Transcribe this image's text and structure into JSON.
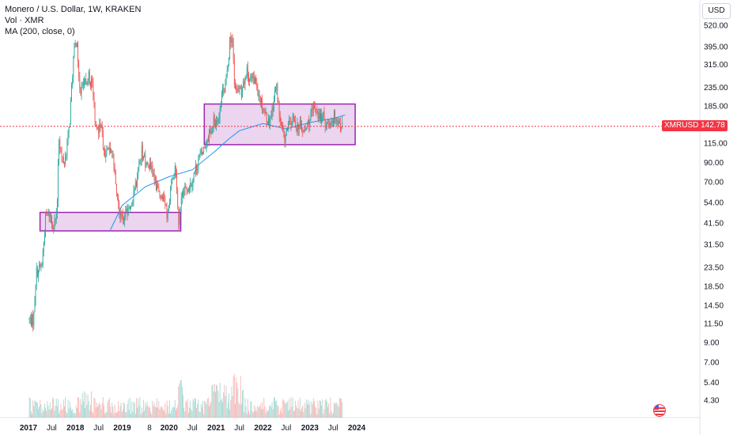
{
  "header": {
    "symbol_line": "Monero / U.S. Dollar, 1W, KRAKEN",
    "volume_line": "Vol · XMR",
    "ma_line": "MA (200, close, 0)"
  },
  "currency_button": "USD",
  "colors": {
    "up": "#26a69a",
    "down": "#ef5350",
    "ma": "#2196f3",
    "box_fill": "#e1bee7",
    "box_stroke": "#9c27b0",
    "price_line": "#f23645"
  },
  "chart_data": {
    "type": "candlestick",
    "title": "Monero / U.S. Dollar, 1W, KRAKEN",
    "y_scale": "log",
    "y_ticks": [
      "520.00",
      "395.00",
      "315.00",
      "235.00",
      "185.00",
      "142.78",
      "115.00",
      "90.00",
      "70.00",
      "54.00",
      "41.50",
      "31.50",
      "23.50",
      "18.50",
      "14.50",
      "11.50",
      "9.00",
      "7.00",
      "5.40",
      "4.30"
    ],
    "x_ticks": [
      "2017",
      "Jul",
      "2018",
      "Jul",
      "2019",
      "8",
      "2020",
      "Jul",
      "2021",
      "Jul",
      "2022",
      "Jul",
      "2023",
      "Jul",
      "2024"
    ],
    "last_price": {
      "symbol": "XMRUSD",
      "value": "142.78"
    },
    "price_path": [
      [
        "2017-01-01",
        12
      ],
      [
        "2017-02-10",
        12
      ],
      [
        "2017-03-01",
        22
      ],
      [
        "2017-04-15",
        24
      ],
      [
        "2017-05-15",
        45
      ],
      [
        "2017-06-15",
        47
      ],
      [
        "2017-07-15",
        40
      ],
      [
        "2017-08-10",
        45
      ],
      [
        "2017-08-25",
        130
      ],
      [
        "2017-09-15",
        95
      ],
      [
        "2017-10-10",
        90
      ],
      [
        "2017-11-15",
        140
      ],
      [
        "2017-12-20",
        370
      ],
      [
        "2018-01-08",
        430
      ],
      [
        "2018-02-10",
        220
      ],
      [
        "2018-03-15",
        260
      ],
      [
        "2018-04-20",
        270
      ],
      [
        "2018-05-15",
        230
      ],
      [
        "2018-06-15",
        130
      ],
      [
        "2018-07-20",
        140
      ],
      [
        "2018-08-15",
        100
      ],
      [
        "2018-09-15",
        110
      ],
      [
        "2018-10-15",
        105
      ],
      [
        "2018-11-25",
        60
      ],
      [
        "2018-12-20",
        45
      ],
      [
        "2019-01-15",
        45
      ],
      [
        "2019-03-01",
        50
      ],
      [
        "2019-04-15",
        68
      ],
      [
        "2019-06-01",
        105
      ],
      [
        "2019-07-01",
        90
      ],
      [
        "2019-08-15",
        85
      ],
      [
        "2019-09-15",
        70
      ],
      [
        "2019-10-15",
        60
      ],
      [
        "2019-11-15",
        60
      ],
      [
        "2019-12-20",
        45
      ],
      [
        "2020-01-20",
        70
      ],
      [
        "2020-02-20",
        85
      ],
      [
        "2020-03-15",
        40
      ],
      [
        "2020-04-01",
        55
      ],
      [
        "2020-05-15",
        65
      ],
      [
        "2020-06-15",
        68
      ],
      [
        "2020-07-20",
        80
      ],
      [
        "2020-08-20",
        95
      ],
      [
        "2020-09-15",
        100
      ],
      [
        "2020-10-20",
        120
      ],
      [
        "2020-12-15",
        150
      ],
      [
        "2021-01-20",
        160
      ],
      [
        "2021-02-20",
        220
      ],
      [
        "2021-03-20",
        250
      ],
      [
        "2021-04-20",
        440
      ],
      [
        "2021-05-10",
        420
      ],
      [
        "2021-05-25",
        230
      ],
      [
        "2021-06-20",
        230
      ],
      [
        "2021-07-20",
        210
      ],
      [
        "2021-08-20",
        290
      ],
      [
        "2021-09-15",
        270
      ],
      [
        "2021-10-15",
        260
      ],
      [
        "2021-11-10",
        250
      ],
      [
        "2021-12-15",
        200
      ],
      [
        "2022-01-15",
        170
      ],
      [
        "2022-02-15",
        150
      ],
      [
        "2022-03-15",
        180
      ],
      [
        "2022-04-15",
        240
      ],
      [
        "2022-05-10",
        160
      ],
      [
        "2022-06-15",
        120
      ],
      [
        "2022-07-15",
        140
      ],
      [
        "2022-08-20",
        155
      ],
      [
        "2022-09-20",
        145
      ],
      [
        "2022-10-20",
        145
      ],
      [
        "2022-11-15",
        130
      ],
      [
        "2022-12-20",
        150
      ],
      [
        "2023-01-20",
        170
      ],
      [
        "2023-02-15",
        185
      ],
      [
        "2023-03-15",
        160
      ],
      [
        "2023-04-15",
        160
      ],
      [
        "2023-05-15",
        145
      ],
      [
        "2023-06-15",
        155
      ],
      [
        "2023-07-20",
        165
      ],
      [
        "2023-08-15",
        150
      ],
      [
        "2023-09-15",
        142.78
      ]
    ],
    "ma_path": [
      [
        "2018-10-01",
        38
      ],
      [
        "2019-01-01",
        52
      ],
      [
        "2019-07-01",
        66
      ],
      [
        "2020-01-01",
        75
      ],
      [
        "2020-07-01",
        82
      ],
      [
        "2021-01-01",
        105
      ],
      [
        "2021-04-01",
        120
      ],
      [
        "2021-07-01",
        135
      ],
      [
        "2022-01-01",
        148
      ],
      [
        "2022-07-01",
        138
      ],
      [
        "2023-01-01",
        150
      ],
      [
        "2023-07-01",
        158
      ],
      [
        "2023-10-01",
        165
      ]
    ],
    "zones": [
      {
        "from": "2017-04-01",
        "to": "2020-04-01",
        "low": 37.5,
        "high": 47.5
      },
      {
        "from": "2020-10-01",
        "to": "2023-12-20",
        "low": 113,
        "high": 190
      }
    ],
    "volume": {
      "label": "Vol · XMR",
      "x_range": [
        "2017-01-01",
        "2023-10-01"
      ]
    },
    "grid": false
  }
}
